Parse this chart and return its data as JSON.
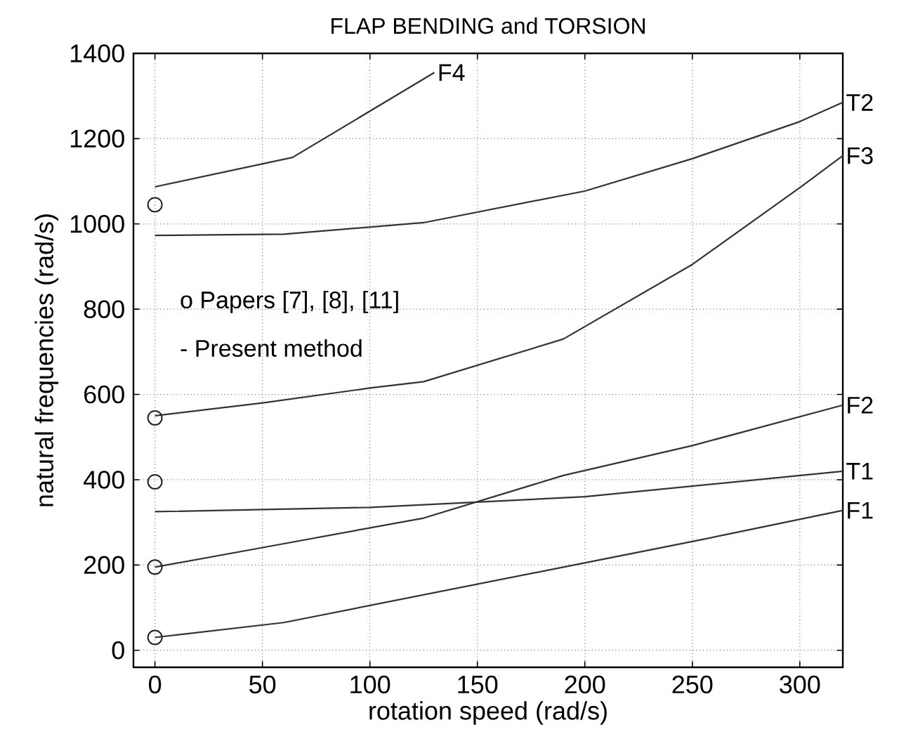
{
  "chart_data": {
    "type": "line",
    "title": "FLAP BENDING and TORSION",
    "xlabel": "rotation speed  (rad/s)",
    "ylabel": "natural frequencies (rad/s)",
    "xlim": [
      -10,
      320
    ],
    "ylim": [
      -40,
      1400
    ],
    "xticks": [
      0,
      50,
      100,
      150,
      200,
      250,
      300
    ],
    "yticks": [
      0,
      200,
      400,
      600,
      800,
      1000,
      1200,
      1400
    ],
    "grid": true,
    "line_style": "solid",
    "annotations": [
      "o  Papers [7], [8], [11]",
      "- Present method"
    ],
    "series": [
      {
        "name": "F1",
        "color": "#333333",
        "marker": "none",
        "x": [
          0,
          60,
          125,
          190,
          250,
          320
        ],
        "values": [
          30,
          65,
          130,
          195,
          255,
          328
        ]
      },
      {
        "name": "T1",
        "color": "#333333",
        "marker": "none",
        "x": [
          0,
          100,
          200,
          320
        ],
        "values": [
          325,
          335,
          360,
          420
        ]
      },
      {
        "name": "F2",
        "color": "#333333",
        "marker": "none",
        "x": [
          0,
          60,
          125,
          190,
          250,
          320
        ],
        "values": [
          195,
          250,
          310,
          410,
          480,
          575
        ]
      },
      {
        "name": "F3",
        "color": "#333333",
        "marker": "none",
        "x": [
          0,
          50,
          100,
          125,
          190,
          250,
          300,
          320
        ],
        "values": [
          550,
          580,
          615,
          630,
          730,
          905,
          1085,
          1160
        ]
      },
      {
        "name": "T2",
        "color": "#333333",
        "marker": "none",
        "x": [
          0,
          60,
          125,
          200,
          250,
          300,
          320
        ],
        "values": [
          973,
          976,
          1003,
          1077,
          1153,
          1240,
          1285
        ]
      },
      {
        "name": "F4",
        "color": "#333333",
        "marker": "none",
        "x": [
          0,
          64,
          130
        ],
        "values": [
          1087,
          1156,
          1355
        ]
      },
      {
        "type": "scatter",
        "color": "#222222",
        "marker": "circle",
        "x": [
          0,
          0,
          0,
          0,
          0
        ],
        "values": [
          30,
          195,
          395,
          545,
          1045
        ]
      }
    ]
  }
}
